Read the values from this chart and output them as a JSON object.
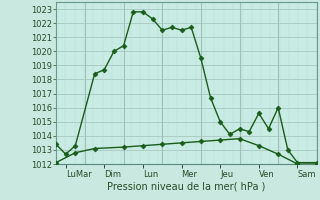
{
  "background_color": "#c8e8e0",
  "plot_bg_color": "#c8ebe3",
  "grid_color_major": "#a0c0b8",
  "grid_color_minor": "#b8d8d0",
  "line_color": "#1a5c1a",
  "ylim": [
    1012,
    1023.5
  ],
  "yticks": [
    1012,
    1013,
    1014,
    1015,
    1016,
    1017,
    1018,
    1019,
    1020,
    1021,
    1022,
    1023
  ],
  "xlabel": "Pression niveau de la mer( hPa )",
  "day_labels": [
    "LuMar",
    "Dim",
    "Lun",
    "Mer",
    "Jeu",
    "Ven",
    "Sam"
  ],
  "day_positions": [
    0.5,
    2.5,
    4.5,
    6.5,
    8.5,
    10.5,
    12.5
  ],
  "vline_positions": [
    1.5,
    3.5,
    5.5,
    7.5,
    9.5,
    11.5,
    13.5
  ],
  "series1_x": [
    0.0,
    0.5,
    1.0,
    2.0,
    2.5,
    3.0,
    3.5,
    4.0,
    4.5,
    5.0,
    5.5,
    6.0,
    6.5,
    7.0,
    7.5,
    8.0,
    8.5,
    9.0,
    9.5,
    10.0,
    10.5,
    11.0,
    11.5,
    12.0,
    12.5,
    13.5
  ],
  "series1_y": [
    1013.4,
    1012.7,
    1013.3,
    1018.4,
    1018.7,
    1020.0,
    1020.4,
    1022.8,
    1022.8,
    1022.3,
    1021.5,
    1021.7,
    1021.5,
    1021.7,
    1019.5,
    1016.7,
    1015.0,
    1014.1,
    1014.5,
    1014.3,
    1015.6,
    1014.5,
    1016.0,
    1013.0,
    1012.1,
    1012.1
  ],
  "series2_x": [
    0.0,
    1.0,
    2.0,
    3.5,
    4.5,
    5.5,
    6.5,
    7.5,
    8.5,
    9.5,
    10.5,
    11.5,
    12.5,
    13.5
  ],
  "series2_y": [
    1012.1,
    1012.8,
    1013.1,
    1013.2,
    1013.3,
    1013.4,
    1013.5,
    1013.6,
    1013.7,
    1013.8,
    1013.3,
    1012.7,
    1012.0,
    1012.0
  ],
  "marker": "D",
  "markersize": 2.5,
  "linewidth": 1.0,
  "tick_fontsize": 6,
  "label_fontsize": 7
}
